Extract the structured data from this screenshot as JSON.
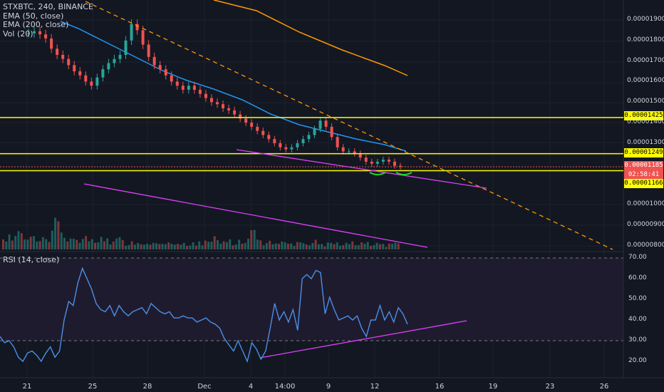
{
  "legend": {
    "symbol": "STXBTC, 240, BINANCE",
    "ema50": "EMA (50, close)",
    "ema200": "EMA (200, close)",
    "vol": "Vol (20)",
    "rsi": "RSI (14, close)"
  },
  "price_labels": {
    "resistance": "0.00001425",
    "support_upper": "0.00001249",
    "current": "0.00001185",
    "countdown": "02:58:41",
    "support_lower": "0.00001166"
  },
  "price_axis_ticks": [
    "0.00001900",
    "0.00001800",
    "0.00001700",
    "0.00001600",
    "0.00001500",
    "0.00001400",
    "0.00001300",
    "0.00001000",
    "0.00000900",
    "0.00000800"
  ],
  "rsi_axis_ticks": [
    "70.00",
    "60.00",
    "50.00",
    "40.00",
    "30.00",
    "20.00"
  ],
  "time_axis_ticks": [
    "21",
    "25",
    "28",
    "Dec",
    "4",
    "14:00",
    "9",
    "12",
    "16",
    "19",
    "23",
    "26"
  ],
  "colors": {
    "background": "#131722",
    "up": "#26a69a",
    "down": "#ef5350",
    "ema50": "#2196f3",
    "ema200": "#ff9800",
    "horizontal_lines": "#ffff00",
    "trendlines": "#e040fb",
    "rsi_line": "#4b8fe8",
    "rsi_band": "#1f1b2e",
    "fib_arc": "#1ddc28"
  },
  "chart_data": {
    "type": "candlestick",
    "price_range": [
      7.9e-06,
      1.94e-05
    ],
    "rsi_range": [
      15,
      72
    ],
    "horizontal_levels": [
      1.425e-05,
      1.249e-05,
      1.166e-05
    ],
    "current_price": 1.185e-05,
    "close_series": [
      1.835e-05,
      1.845e-05,
      1.83e-05,
      1.81e-05,
      1.76e-05,
      1.73e-05,
      1.71e-05,
      1.68e-05,
      1.65e-05,
      1.63e-05,
      1.6e-05,
      1.58e-05,
      1.62e-05,
      1.66e-05,
      1.69e-05,
      1.71e-05,
      1.73e-05,
      1.8e-05,
      1.88e-05,
      1.85e-05,
      1.78e-05,
      1.72e-05,
      1.68e-05,
      1.66e-05,
      1.63e-05,
      1.6e-05,
      1.58e-05,
      1.56e-05,
      1.58e-05,
      1.56e-05,
      1.54e-05,
      1.52e-05,
      1.5e-05,
      1.49e-05,
      1.47e-05,
      1.46e-05,
      1.44e-05,
      1.42e-05,
      1.4e-05,
      1.38e-05,
      1.36e-05,
      1.34e-05,
      1.32e-05,
      1.3e-05,
      1.28e-05,
      1.27e-05,
      1.28e-05,
      1.3e-05,
      1.32e-05,
      1.34e-05,
      1.37e-05,
      1.41e-05,
      1.38e-05,
      1.33e-05,
      1.28e-05,
      1.26e-05,
      1.26e-05,
      1.25e-05,
      1.23e-05,
      1.21e-05,
      1.2e-05,
      1.21e-05,
      1.22e-05,
      1.21e-05,
      1.19e-05,
      1.185e-05
    ],
    "rsi_series": [
      32,
      29,
      30,
      27,
      22,
      20,
      24,
      25,
      23,
      20,
      24,
      27,
      22,
      25,
      40,
      49,
      47,
      58,
      65,
      60,
      55,
      48,
      45,
      44,
      47,
      42,
      47,
      44,
      42,
      44,
      45,
      46,
      43,
      48,
      46,
      44,
      43,
      44,
      41,
      41,
      42,
      41,
      41,
      39,
      40,
      41,
      39,
      38,
      36,
      31,
      28,
      25,
      30,
      25,
      20,
      29,
      26,
      21,
      25,
      36,
      48,
      40,
      44,
      39,
      45,
      35,
      60,
      62,
      60,
      64,
      63,
      43,
      51,
      45,
      40,
      41,
      42,
      40,
      42,
      36,
      32,
      40,
      40,
      47,
      40,
      44,
      39,
      46,
      43,
      38
    ],
    "volume_series": [
      12,
      8,
      15,
      10,
      14,
      22,
      18,
      9,
      11,
      13,
      16,
      8,
      7,
      14,
      10,
      9,
      21,
      35,
      33,
      18,
      14,
      8,
      10,
      12,
      9,
      8,
      11,
      13,
      9,
      10,
      8,
      7,
      12,
      9,
      11,
      6,
      8,
      10,
      14,
      9,
      7,
      6,
      11,
      8,
      9,
      10,
      7,
      6,
      8,
      9,
      12,
      8,
      6,
      9,
      10,
      11,
      7,
      6,
      8,
      9,
      7,
      5,
      9,
      6
    ]
  }
}
